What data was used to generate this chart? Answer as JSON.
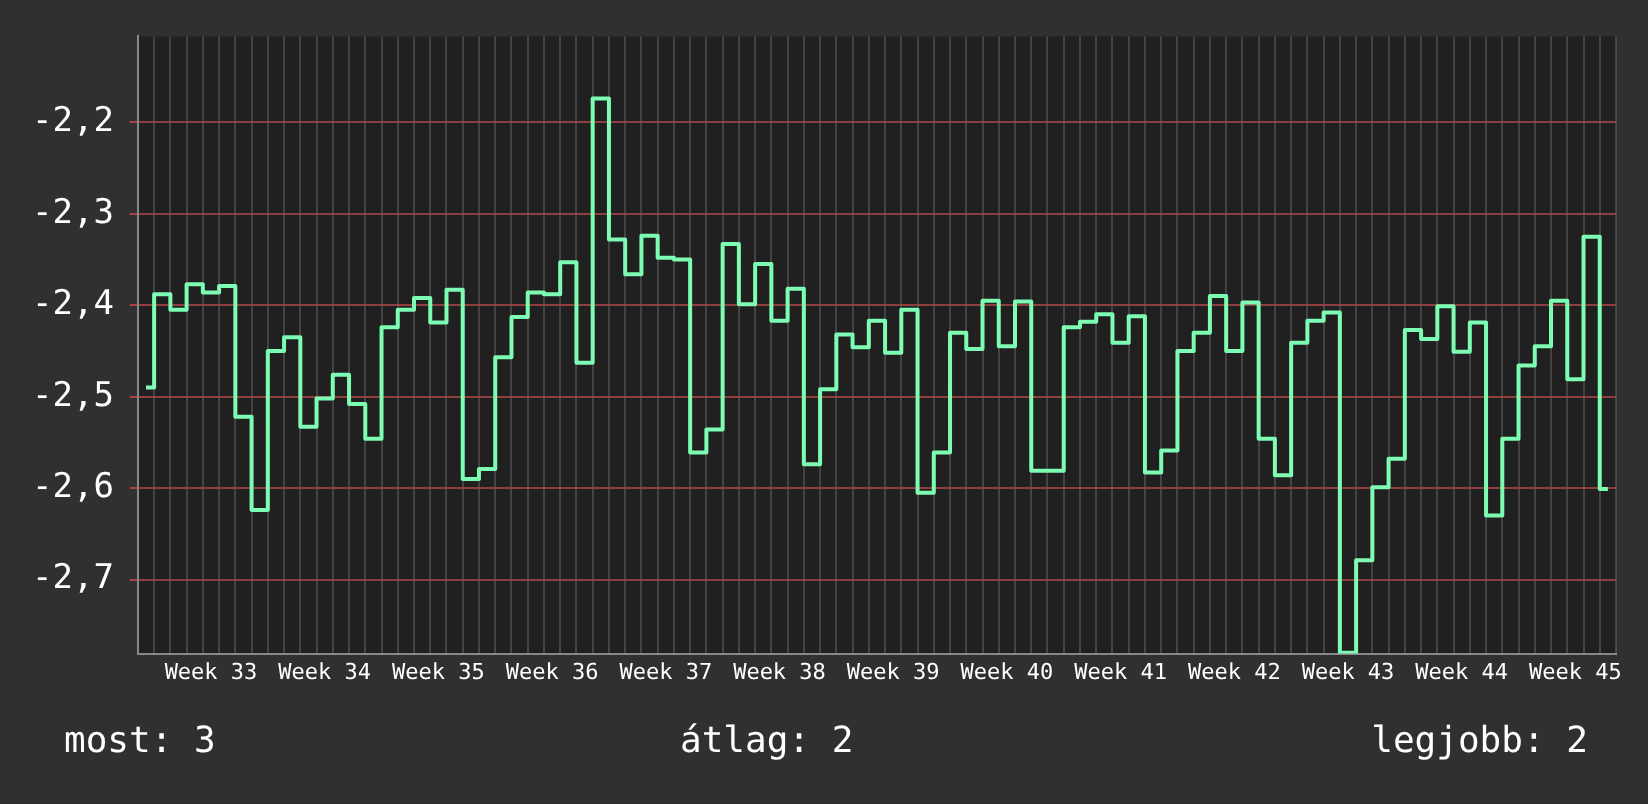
{
  "chart_data": {
    "type": "step",
    "categories": [
      null,
      null,
      null,
      null,
      "Week 33",
      null,
      null,
      null,
      null,
      null,
      null,
      "Week 34",
      null,
      null,
      null,
      null,
      null,
      null,
      "Week 35",
      null,
      null,
      null,
      null,
      null,
      null,
      "Week 36",
      null,
      null,
      null,
      null,
      null,
      null,
      "Week 37",
      null,
      null,
      null,
      null,
      null,
      null,
      "Week 38",
      null,
      null,
      null,
      null,
      null,
      null,
      "Week 39",
      null,
      null,
      null,
      null,
      null,
      null,
      "Week 40",
      null,
      null,
      null,
      null,
      null,
      null,
      "Week 41",
      null,
      null,
      null,
      null,
      null,
      null,
      "Week 42",
      null,
      null,
      null,
      null,
      null,
      null,
      "Week 43",
      null,
      null,
      null,
      null,
      null,
      null,
      "Week 44",
      null,
      null,
      null,
      null,
      null,
      null,
      "Week 45",
      null,
      null
    ],
    "series": [
      {
        "color": "#7dfcb4",
        "values": [
          -2.49,
          -2.388,
          -2.405,
          -2.377,
          -2.386,
          -2.379,
          -2.522,
          -2.624,
          -2.45,
          -2.435,
          -2.533,
          -2.502,
          -2.476,
          -2.508,
          -2.546,
          -2.424,
          -2.405,
          -2.392,
          -2.419,
          -2.383,
          -2.59,
          -2.579,
          -2.457,
          -2.413,
          -2.386,
          -2.388,
          -2.353,
          -2.463,
          -2.174,
          -2.328,
          -2.366,
          -2.324,
          -2.348,
          -2.35,
          -2.561,
          -2.536,
          -2.333,
          -2.399,
          -2.355,
          -2.417,
          -2.382,
          -2.574,
          -2.492,
          -2.432,
          -2.446,
          -2.417,
          -2.452,
          -2.405,
          -2.605,
          -2.561,
          -2.43,
          -2.448,
          -2.395,
          -2.445,
          -2.396,
          -2.581,
          -2.581,
          -2.424,
          -2.418,
          -2.41,
          -2.441,
          -2.412,
          -2.583,
          -2.559,
          -2.45,
          -2.43,
          -2.39,
          -2.45,
          -2.397,
          -2.546,
          -2.586,
          -2.441,
          -2.417,
          -2.408,
          -2.78,
          -2.679,
          -2.599,
          -2.568,
          -2.427,
          -2.437,
          -2.401,
          -2.451,
          -2.419,
          -2.63,
          -2.546,
          -2.466,
          -2.445,
          -2.395,
          -2.481,
          -2.325,
          -2.601
        ]
      }
    ],
    "ylim": [
      -2.781,
      -2.106
    ],
    "yticks": [
      {
        "value": -2.7,
        "label": "-2,7"
      },
      {
        "value": -2.6,
        "label": "-2,6"
      },
      {
        "value": -2.5,
        "label": "-2,5"
      },
      {
        "value": -2.4,
        "label": "-2,4"
      },
      {
        "value": -2.3,
        "label": "-2,3"
      },
      {
        "value": -2.2,
        "label": "-2,2"
      }
    ],
    "grid": true,
    "legend": false,
    "annotations": [
      "most: 3",
      "átlag: 2",
      "legjobb: 2"
    ]
  }
}
